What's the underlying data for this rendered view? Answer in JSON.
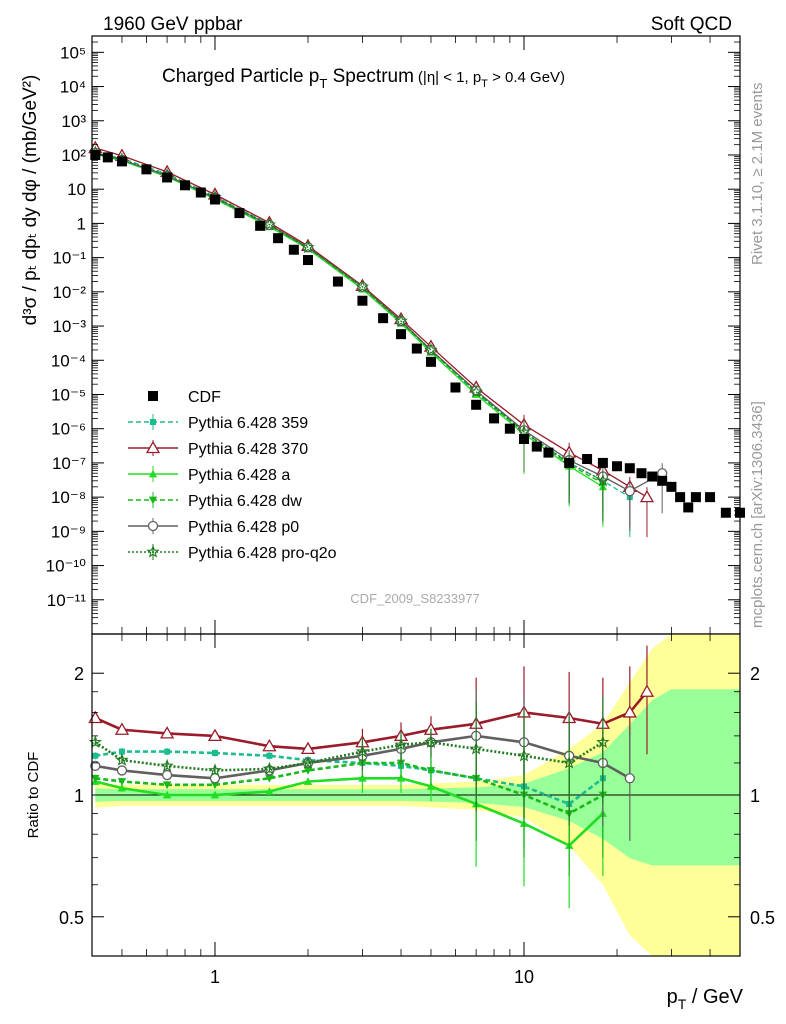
{
  "header": {
    "left": "1960 GeV ppbar",
    "right": "Soft QCD",
    "side_rivet": "Rivet 3.1.10, ≥ 2.1M events",
    "side_mcplots": "mcplots.cern.ch [arXiv:1306.3436]"
  },
  "main_title": "Charged Particle p",
  "main_title_sub": "T",
  "main_title_tail": " Spectrum",
  "main_title_cut": "(|η| < 1, p",
  "main_title_cut_sub": "T",
  "main_title_cut_tail": " > 0.4 GeV)",
  "analysis_id": "CDF_2009_S8233977",
  "ylabel_main": "d³σ / pₜ dpₜ dy dφ / (mb/GeV²)",
  "ylabel_ratio": "Ratio to CDF",
  "xlabel": "p",
  "xlabel_sub": "T",
  "xlabel_tail": " / GeV",
  "colors": {
    "cdf": "#000000",
    "py359": "#1dbc8e",
    "py370": "#9a1c2a",
    "pya": "#22dd22",
    "pydw": "#18b818",
    "pyp0": "#606060",
    "pyproq2o": "#1f7a1f",
    "band_yellow": "#ffff99",
    "band_green": "#99ff99"
  },
  "legend": [
    {
      "key": "cdf",
      "label": "CDF"
    },
    {
      "key": "py359",
      "label": "Pythia 6.428 359"
    },
    {
      "key": "py370",
      "label": "Pythia 6.428 370"
    },
    {
      "key": "pya",
      "label": "Pythia 6.428 a"
    },
    {
      "key": "pydw",
      "label": "Pythia 6.428 dw"
    },
    {
      "key": "pyp0",
      "label": "Pythia 6.428 p0"
    },
    {
      "key": "pyproq2o",
      "label": "Pythia 6.428 pro-q2o"
    }
  ],
  "chart_data": [
    {
      "type": "scatter",
      "panel": "main",
      "xscale": "log",
      "yscale": "log",
      "xlim": [
        0.4,
        50
      ],
      "ylim": [
        1e-12,
        300000.0
      ],
      "x_ticks": [
        "1",
        "10"
      ],
      "y_ticks": [
        "10⁻¹¹",
        "10⁻¹⁰",
        "10⁻⁹",
        "10⁻⁸",
        "10⁻⁷",
        "10⁻⁶",
        "10⁻⁵",
        "10⁻⁴",
        "10⁻³",
        "10⁻²",
        "10⁻¹",
        "1",
        "10",
        "10²",
        "10³",
        "10⁴",
        "10⁵"
      ],
      "y_tick_values": [
        1e-11,
        1e-10,
        1e-09,
        1e-08,
        1e-07,
        1e-06,
        1e-05,
        0.0001,
        0.001,
        0.01,
        0.1,
        1,
        10,
        100,
        1000,
        10000,
        100000
      ],
      "cdf": {
        "x": [
          0.41,
          0.45,
          0.5,
          0.6,
          0.7,
          0.8,
          0.9,
          1.0,
          1.2,
          1.4,
          1.6,
          1.8,
          2.0,
          2.5,
          3.0,
          3.5,
          4.0,
          4.5,
          5.0,
          6.0,
          7.0,
          8.0,
          9.0,
          10,
          11,
          12,
          14,
          16,
          18,
          20,
          22,
          24,
          26,
          28,
          30,
          32,
          34,
          36,
          40,
          45,
          50
        ],
        "y": [
          100,
          85,
          65,
          38,
          22,
          13,
          8,
          5,
          2.0,
          0.85,
          0.37,
          0.17,
          0.085,
          0.02,
          0.0055,
          0.0017,
          0.00058,
          0.00022,
          9e-05,
          1.6e-05,
          5e-06,
          2e-06,
          1e-06,
          5e-07,
          3e-07,
          2e-07,
          1e-07,
          1.3e-07,
          1e-07,
          8e-08,
          7e-08,
          5e-08,
          4e-08,
          3e-08,
          2e-08,
          1e-08,
          5e-09,
          1e-08,
          1e-08,
          3.5e-09,
          3.5e-09
        ]
      },
      "series": [
        {
          "name": "Pythia 6.428 359",
          "key": "py359",
          "x": [
            0.41,
            0.5,
            0.7,
            1.0,
            1.5,
            2.0,
            3.0,
            4.0,
            5.0,
            7.0,
            10,
            14,
            18,
            22
          ],
          "y": [
            120,
            80,
            28,
            6.2,
            0.95,
            0.2,
            0.013,
            0.0013,
            0.00019,
            1.1e-05,
            8e-07,
            1e-07,
            3e-08,
            1e-08
          ]
        },
        {
          "name": "Pythia 6.428 370",
          "key": "py370",
          "x": [
            0.41,
            0.5,
            0.7,
            1.0,
            1.5,
            2.0,
            3.0,
            4.0,
            5.0,
            7.0,
            10,
            14,
            18,
            22,
            25
          ],
          "y": [
            160,
            95,
            32,
            7.0,
            1.05,
            0.22,
            0.015,
            0.0016,
            0.00025,
            1.6e-05,
            1.3e-06,
            2e-07,
            6e-08,
            2e-08,
            1e-08
          ]
        },
        {
          "name": "Pythia 6.428 a",
          "key": "pya",
          "x": [
            0.41,
            0.5,
            0.7,
            1.0,
            1.5,
            2.0,
            3.0,
            4.0,
            5.0,
            7.0,
            10,
            14,
            18
          ],
          "y": [
            105,
            68,
            23,
            5.1,
            0.8,
            0.18,
            0.012,
            0.0012,
            0.00017,
            1e-05,
            7e-07,
            8e-08,
            2e-08
          ]
        },
        {
          "name": "Pythia 6.428 dw",
          "key": "pydw",
          "x": [
            0.41,
            0.5,
            0.7,
            1.0,
            1.5,
            2.0,
            3.0,
            4.0,
            5.0,
            7.0,
            10,
            14,
            18
          ],
          "y": [
            110,
            70,
            24,
            5.3,
            0.85,
            0.19,
            0.013,
            0.0013,
            0.00019,
            1.2e-05,
            8e-07,
            9e-08,
            2.5e-08
          ]
        },
        {
          "name": "Pythia 6.428 p0",
          "key": "pyp0",
          "x": [
            0.41,
            0.5,
            0.7,
            1.0,
            1.5,
            2.0,
            3.0,
            4.0,
            5.0,
            7.0,
            10,
            14,
            18,
            22,
            28
          ],
          "y": [
            115,
            72,
            25,
            5.6,
            0.9,
            0.2,
            0.014,
            0.0014,
            0.0002,
            1.3e-05,
            9e-07,
            1.2e-07,
            4e-08,
            1.5e-08,
            5e-08
          ]
        },
        {
          "name": "Pythia 6.428 pro-q2o",
          "key": "pyproq2o",
          "x": [
            0.41,
            0.5,
            0.7,
            1.0,
            1.5,
            2.0,
            3.0,
            4.0,
            5.0,
            7.0,
            10,
            14,
            18
          ],
          "y": [
            118,
            74,
            26,
            5.8,
            0.92,
            0.2,
            0.014,
            0.0014,
            0.0002,
            1.2e-05,
            8e-07,
            1e-07,
            3e-08
          ]
        }
      ]
    },
    {
      "type": "line",
      "panel": "ratio",
      "xscale": "log",
      "yscale": "log",
      "xlim": [
        0.4,
        50
      ],
      "ylim": [
        0.4,
        2.5
      ],
      "y_ticks": [
        "0.5",
        "1",
        "2"
      ],
      "y_tick_values": [
        0.5,
        1,
        2
      ],
      "reference": 1,
      "band": {
        "x": [
          0.41,
          0.5,
          1.0,
          2.0,
          4.0,
          7.0,
          10,
          14,
          18,
          22,
          26,
          30,
          40,
          50
        ],
        "lo": [
          0.93,
          0.94,
          0.94,
          0.94,
          0.94,
          0.92,
          0.88,
          0.75,
          0.6,
          0.45,
          0.4,
          0.4,
          0.4,
          0.4
        ],
        "hi": [
          1.07,
          1.06,
          1.06,
          1.06,
          1.06,
          1.08,
          1.12,
          1.3,
          1.5,
          1.9,
          2.3,
          2.5,
          2.5,
          2.5
        ]
      },
      "series": [
        {
          "name": "Pythia 6.428 359",
          "key": "py359",
          "x": [
            0.41,
            0.5,
            0.7,
            1.0,
            1.5,
            2.0,
            3.0,
            4.0,
            5.0,
            7.0,
            10,
            14,
            18
          ],
          "y": [
            1.25,
            1.28,
            1.28,
            1.27,
            1.25,
            1.22,
            1.2,
            1.18,
            1.15,
            1.1,
            1.05,
            0.95,
            1.1
          ]
        },
        {
          "name": "Pythia 6.428 370",
          "key": "py370",
          "x": [
            0.41,
            0.5,
            0.7,
            1.0,
            1.5,
            2.0,
            3.0,
            4.0,
            5.0,
            7.0,
            10,
            14,
            18,
            22,
            25
          ],
          "y": [
            1.55,
            1.45,
            1.42,
            1.4,
            1.32,
            1.3,
            1.35,
            1.4,
            1.45,
            1.5,
            1.6,
            1.55,
            1.5,
            1.6,
            1.8
          ]
        },
        {
          "name": "Pythia 6.428 a",
          "key": "pya",
          "x": [
            0.41,
            0.5,
            0.7,
            1.0,
            1.5,
            2.0,
            3.0,
            4.0,
            5.0,
            7.0,
            10,
            14,
            18
          ],
          "y": [
            1.08,
            1.04,
            1.0,
            1.0,
            1.02,
            1.08,
            1.1,
            1.1,
            1.05,
            0.95,
            0.85,
            0.75,
            0.9
          ]
        },
        {
          "name": "Pythia 6.428 dw",
          "key": "pydw",
          "x": [
            0.41,
            0.5,
            0.7,
            1.0,
            1.5,
            2.0,
            3.0,
            4.0,
            5.0,
            7.0,
            10,
            14,
            18
          ],
          "y": [
            1.1,
            1.08,
            1.06,
            1.06,
            1.1,
            1.15,
            1.2,
            1.2,
            1.15,
            1.1,
            1.0,
            0.9,
            1.0
          ]
        },
        {
          "name": "Pythia 6.428 p0",
          "key": "pyp0",
          "x": [
            0.41,
            0.5,
            0.7,
            1.0,
            1.5,
            2.0,
            3.0,
            4.0,
            5.0,
            7.0,
            10,
            14,
            18,
            22
          ],
          "y": [
            1.18,
            1.15,
            1.12,
            1.1,
            1.15,
            1.2,
            1.25,
            1.3,
            1.35,
            1.4,
            1.35,
            1.25,
            1.2,
            1.1
          ]
        },
        {
          "name": "Pythia 6.428 pro-q2o",
          "key": "pyproq2o",
          "x": [
            0.41,
            0.5,
            0.7,
            1.0,
            1.5,
            2.0,
            3.0,
            4.0,
            5.0,
            7.0,
            10,
            14,
            18
          ],
          "y": [
            1.35,
            1.22,
            1.18,
            1.15,
            1.16,
            1.2,
            1.28,
            1.33,
            1.35,
            1.3,
            1.25,
            1.2,
            1.35
          ]
        }
      ]
    }
  ]
}
